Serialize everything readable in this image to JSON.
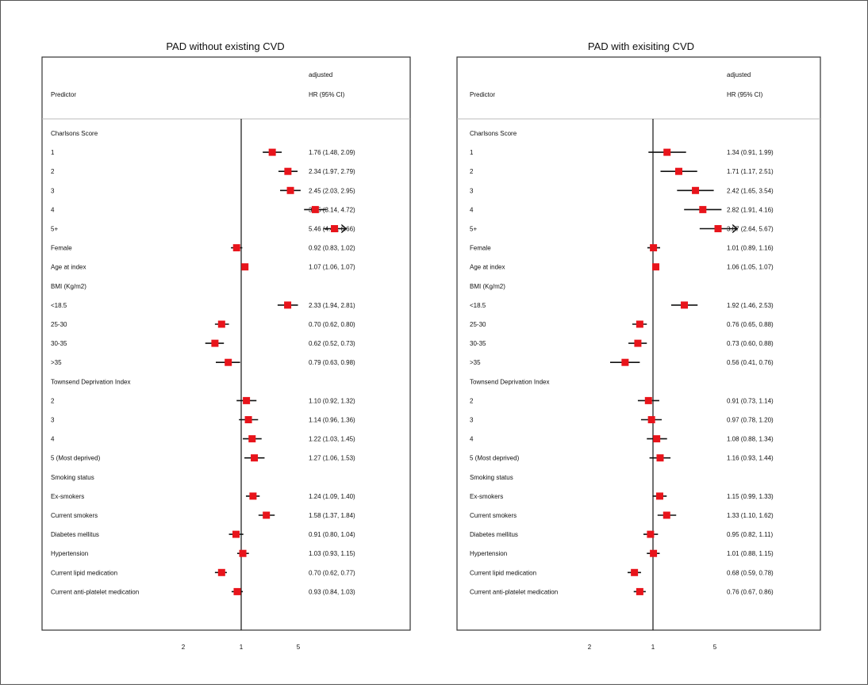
{
  "chart_data": [
    {
      "type": "forest",
      "title": "PAD without existing CVD",
      "header": {
        "predictor": "Predictor",
        "adjusted": "adjusted",
        "hr": "HR (95% CI)"
      },
      "xscale": "log",
      "xticks": [
        "2",
        "1",
        "5"
      ],
      "rows": [
        {
          "label": "Charlsons Score"
        },
        {
          "label": "1",
          "hr": 1.76,
          "lo": 1.48,
          "hi": 2.09,
          "text": "1.76 (1.48, 2.09)"
        },
        {
          "label": "2",
          "hr": 2.34,
          "lo": 1.97,
          "hi": 2.79,
          "text": "2.34 (1.97, 2.79)"
        },
        {
          "label": "3",
          "hr": 2.45,
          "lo": 2.03,
          "hi": 2.95,
          "text": "2.45 (2.03, 2.95)"
        },
        {
          "label": "4",
          "hr": 3.85,
          "lo": 3.14,
          "hi": 4.72,
          "text": "3.85 (3.14, 4.72)"
        },
        {
          "label": "5+",
          "hr": 5.46,
          "lo": 4.47,
          "hi": 6.66,
          "text": "5.46 (4.47, 6.66)",
          "arrow": true
        },
        {
          "label": "Female",
          "hr": 0.92,
          "lo": 0.83,
          "hi": 1.02,
          "text": "0.92 (0.83, 1.02)"
        },
        {
          "label": "Age at index",
          "hr": 1.07,
          "lo": 1.06,
          "hi": 1.07,
          "text": "1.07 (1.06, 1.07)"
        },
        {
          "label": "BMI  (Kg/m2)"
        },
        {
          "label": "<18.5",
          "hr": 2.33,
          "lo": 1.94,
          "hi": 2.81,
          "text": "2.33 (1.94, 2.81)"
        },
        {
          "label": "25-30",
          "hr": 0.7,
          "lo": 0.62,
          "hi": 0.8,
          "text": "0.70 (0.62, 0.80)"
        },
        {
          "label": "30-35",
          "hr": 0.62,
          "lo": 0.52,
          "hi": 0.73,
          "text": "0.62 (0.52, 0.73)"
        },
        {
          "label": ">35",
          "hr": 0.79,
          "lo": 0.63,
          "hi": 0.98,
          "text": "0.79 (0.63, 0.98)"
        },
        {
          "label": "Townsend Deprivation Index"
        },
        {
          "label": "2",
          "hr": 1.1,
          "lo": 0.92,
          "hi": 1.32,
          "text": "1.10 (0.92, 1.32)"
        },
        {
          "label": "3",
          "hr": 1.14,
          "lo": 0.96,
          "hi": 1.36,
          "text": "1.14 (0.96, 1.36)"
        },
        {
          "label": "4",
          "hr": 1.22,
          "lo": 1.03,
          "hi": 1.45,
          "text": "1.22 (1.03, 1.45)"
        },
        {
          "label": "5 (Most deprived)",
          "hr": 1.27,
          "lo": 1.06,
          "hi": 1.53,
          "text": "1.27 (1.06, 1.53)"
        },
        {
          "label": "Smoking status"
        },
        {
          "label": "Ex-smokers",
          "hr": 1.24,
          "lo": 1.09,
          "hi": 1.4,
          "text": "1.24 (1.09, 1.40)"
        },
        {
          "label": "Current smokers",
          "hr": 1.58,
          "lo": 1.37,
          "hi": 1.84,
          "text": "1.58 (1.37, 1.84)"
        },
        {
          "label": "Diabetes mellitus",
          "hr": 0.91,
          "lo": 0.8,
          "hi": 1.04,
          "text": "0.91 (0.80, 1.04)"
        },
        {
          "label": "Hypertension",
          "hr": 1.03,
          "lo": 0.93,
          "hi": 1.15,
          "text": "1.03 (0.93, 1.15)"
        },
        {
          "label": "Current lipid medication",
          "hr": 0.7,
          "lo": 0.62,
          "hi": 0.77,
          "text": "0.70 (0.62, 0.77)"
        },
        {
          "label": "Current anti-platelet medication",
          "hr": 0.93,
          "lo": 0.84,
          "hi": 1.03,
          "text": "0.93 (0.84, 1.03)"
        }
      ]
    },
    {
      "type": "forest",
      "title": "PAD with exisiting CVD",
      "header": {
        "predictor": "Predictor",
        "adjusted": "adjusted",
        "hr": "HR (95% CI)"
      },
      "xscale": "log",
      "xticks": [
        "2",
        "1",
        "5"
      ],
      "rows": [
        {
          "label": "Charlsons Score"
        },
        {
          "label": "1",
          "hr": 1.34,
          "lo": 0.91,
          "hi": 1.99,
          "text": "1.34 (0.91, 1.99)"
        },
        {
          "label": "2",
          "hr": 1.71,
          "lo": 1.17,
          "hi": 2.51,
          "text": "1.71 (1.17, 2.51)"
        },
        {
          "label": "3",
          "hr": 2.42,
          "lo": 1.65,
          "hi": 3.54,
          "text": "2.42 (1.65, 3.54)"
        },
        {
          "label": "4",
          "hr": 2.82,
          "lo": 1.91,
          "hi": 4.16,
          "text": "2.82 (1.91, 4.16)"
        },
        {
          "label": "5+",
          "hr": 3.87,
          "lo": 2.64,
          "hi": 5.67,
          "text": "3.87 (2.64, 5.67)",
          "arrow": true
        },
        {
          "label": "Female",
          "hr": 1.01,
          "lo": 0.89,
          "hi": 1.16,
          "text": "1.01 (0.89, 1.16)"
        },
        {
          "label": "Age at index",
          "hr": 1.06,
          "lo": 1.05,
          "hi": 1.07,
          "text": "1.06 (1.05, 1.07)"
        },
        {
          "label": "BMI  (Kg/m2)"
        },
        {
          "label": "<18.5",
          "hr": 1.92,
          "lo": 1.46,
          "hi": 2.53,
          "text": "1.92 (1.46, 2.53)"
        },
        {
          "label": "25-30",
          "hr": 0.76,
          "lo": 0.65,
          "hi": 0.88,
          "text": "0.76 (0.65, 0.88)"
        },
        {
          "label": "30-35",
          "hr": 0.73,
          "lo": 0.6,
          "hi": 0.88,
          "text": "0.73 (0.60, 0.88)"
        },
        {
          "label": ">35",
          "hr": 0.56,
          "lo": 0.41,
          "hi": 0.76,
          "text": "0.56 (0.41, 0.76)"
        },
        {
          "label": "Townsend Deprivation Index"
        },
        {
          "label": "2",
          "hr": 0.91,
          "lo": 0.73,
          "hi": 1.14,
          "text": "0.91 (0.73, 1.14)"
        },
        {
          "label": "3",
          "hr": 0.97,
          "lo": 0.78,
          "hi": 1.2,
          "text": "0.97 (0.78, 1.20)"
        },
        {
          "label": "4",
          "hr": 1.08,
          "lo": 0.88,
          "hi": 1.34,
          "text": "1.08 (0.88, 1.34)"
        },
        {
          "label": "5 (Most deprived)",
          "hr": 1.16,
          "lo": 0.93,
          "hi": 1.44,
          "text": "1.16 (0.93, 1.44)"
        },
        {
          "label": "Smoking status"
        },
        {
          "label": "Ex-smokers",
          "hr": 1.15,
          "lo": 0.99,
          "hi": 1.33,
          "text": "1.15 (0.99, 1.33)"
        },
        {
          "label": "Current smokers",
          "hr": 1.33,
          "lo": 1.1,
          "hi": 1.62,
          "text": "1.33 (1.10, 1.62)"
        },
        {
          "label": "Diabetes mellitus",
          "hr": 0.95,
          "lo": 0.82,
          "hi": 1.11,
          "text": "0.95 (0.82, 1.11)"
        },
        {
          "label": "Hypertension",
          "hr": 1.01,
          "lo": 0.88,
          "hi": 1.15,
          "text": "1.01 (0.88, 1.15)"
        },
        {
          "label": "Current lipid medication",
          "hr": 0.68,
          "lo": 0.59,
          "hi": 0.78,
          "text": "0.68 (0.59, 0.78)"
        },
        {
          "label": "Current anti-platelet medication",
          "hr": 0.76,
          "lo": 0.67,
          "hi": 0.86,
          "text": "0.76 (0.67, 0.86)"
        }
      ]
    }
  ],
  "colors": {
    "marker": "#e8141b",
    "line": "#111111",
    "border": "#333333",
    "separator": "#bbbbbb"
  }
}
